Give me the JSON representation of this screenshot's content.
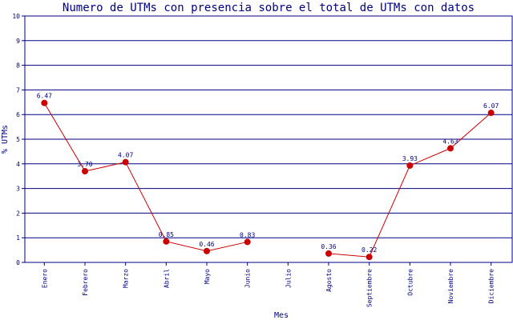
{
  "chart_data": {
    "type": "line",
    "title": "Numero de UTMs con presencia sobre el total de UTMs con datos",
    "xlabel": "Mes",
    "ylabel": "% UTMs",
    "ylim": [
      0,
      10
    ],
    "yticks": [
      0,
      1,
      2,
      3,
      4,
      5,
      6,
      7,
      8,
      9,
      10
    ],
    "grid": true,
    "categories": [
      "Enero",
      "Febrero",
      "Marzo",
      "Abril",
      "Mayo",
      "Junio",
      "Julio",
      "Agosto",
      "Septiembre",
      "Octubre",
      "Noviembre",
      "Diciembre"
    ],
    "series": [
      {
        "values": [
          6.47,
          3.7,
          4.07,
          0.85,
          0.46,
          0.83,
          null,
          0.36,
          0.22,
          3.93,
          4.63,
          6.07
        ],
        "labels": [
          "6.47",
          "3.70",
          "4.07",
          "0.85",
          "0.46",
          "0.83",
          null,
          "0.36",
          "0.22",
          "3.93",
          "4.63",
          "6.07"
        ],
        "color": "#cc0000"
      }
    ],
    "axis_color": "#000080"
  }
}
